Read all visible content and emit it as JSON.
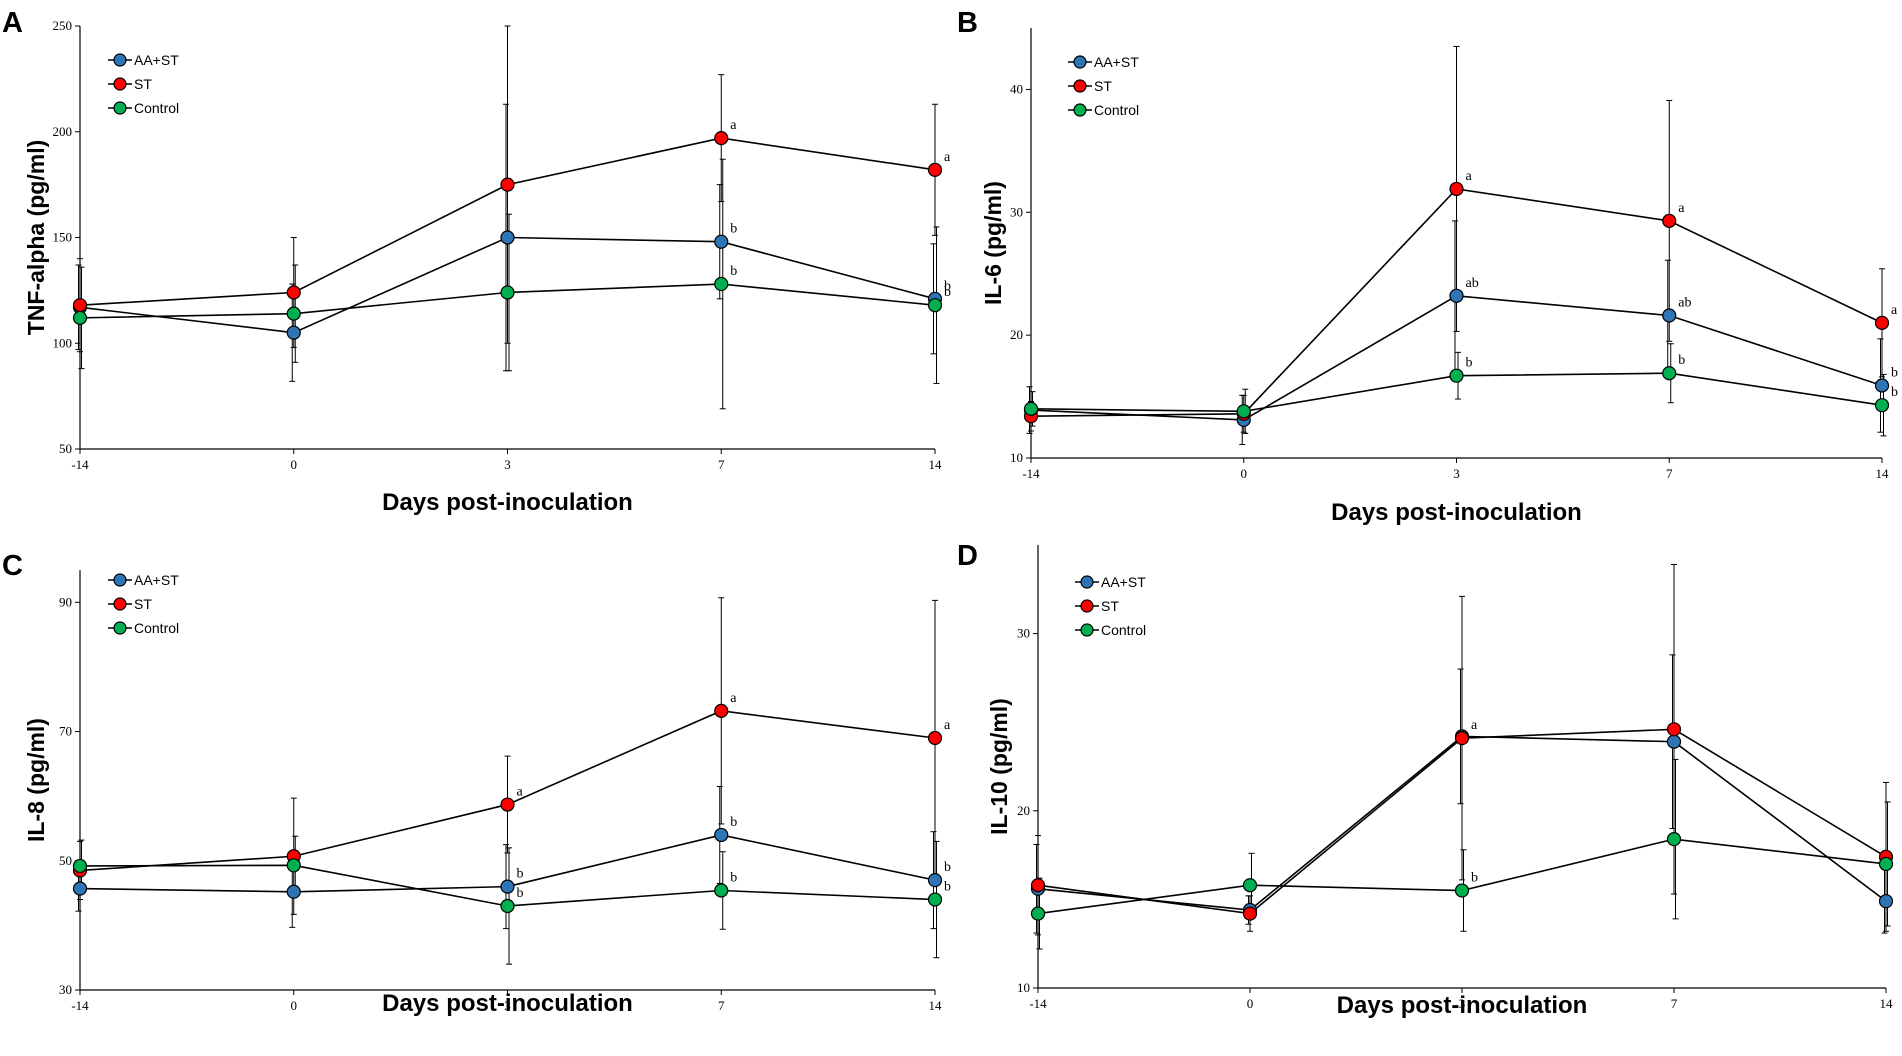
{
  "chart_data": [
    {
      "type": "line",
      "panel": "A",
      "title": "",
      "xlabel": "Days post-inoculation",
      "ylabel": "TNF-alpha (pg/ml)",
      "categories": [
        "-14",
        "0",
        "3",
        "7",
        "14"
      ],
      "ylim": [
        50,
        250
      ],
      "yticks": [
        50,
        100,
        150,
        200,
        250
      ],
      "legend_position": "top-left",
      "series": [
        {
          "name": "AA+ST",
          "color": "#2e75b6",
          "values": [
            117,
            105,
            150,
            148,
            121
          ],
          "errors": [
            20,
            23,
            63,
            27,
            26
          ],
          "sig": [
            "",
            "",
            "",
            "b",
            "b"
          ]
        },
        {
          "name": "ST",
          "color": "#ff0000",
          "values": [
            118,
            124,
            175,
            197,
            182
          ],
          "errors": [
            22,
            26,
            75,
            30,
            31
          ],
          "sig": [
            "",
            "",
            "",
            "a",
            "a"
          ]
        },
        {
          "name": "Control",
          "color": "#00b050",
          "values": [
            112,
            114,
            124,
            128,
            118
          ],
          "errors": [
            24,
            23,
            37,
            59,
            37
          ],
          "sig": [
            "",
            "",
            "",
            "b",
            "b"
          ]
        }
      ]
    },
    {
      "type": "line",
      "panel": "B",
      "title": "",
      "xlabel": "Days post-inoculation",
      "ylabel": "IL-6 (pg/ml)",
      "categories": [
        "-14",
        "0",
        "3",
        "7",
        "14"
      ],
      "ylim": [
        10,
        45
      ],
      "yticks": [
        10,
        20,
        30,
        40
      ],
      "legend_position": "top-left",
      "series": [
        {
          "name": "AA+ST",
          "color": "#2e75b6",
          "values": [
            13.9,
            13.1,
            23.2,
            21.6,
            15.9
          ],
          "errors": [
            1.9,
            2.0,
            6.1,
            4.5,
            3.8
          ],
          "sig": [
            "",
            "",
            "ab",
            "ab",
            "b"
          ]
        },
        {
          "name": "ST",
          "color": "#ff0000",
          "values": [
            13.4,
            13.6,
            31.9,
            29.3,
            21.0
          ],
          "errors": [
            1.2,
            1.5,
            11.6,
            9.8,
            4.4
          ],
          "sig": [
            "",
            "",
            "a",
            "a",
            "a"
          ]
        },
        {
          "name": "Control",
          "color": "#00b050",
          "values": [
            14.0,
            13.8,
            16.7,
            16.9,
            14.3
          ],
          "errors": [
            1.4,
            1.8,
            1.9,
            2.4,
            2.5
          ],
          "sig": [
            "",
            "",
            "b",
            "b",
            "b"
          ]
        }
      ]
    },
    {
      "type": "line",
      "panel": "C",
      "title": "",
      "xlabel": "Days post-inoculation",
      "ylabel": "IL-8 (pg/ml)",
      "categories": [
        "-14",
        "0",
        "3",
        "7",
        "14"
      ],
      "ylim": [
        30,
        95
      ],
      "yticks": [
        30,
        50,
        70,
        90
      ],
      "legend_position": "top-left",
      "series": [
        {
          "name": "AA+ST",
          "color": "#2e75b6",
          "values": [
            45.7,
            45.2,
            46.0,
            54.0,
            47.0
          ],
          "errors": [
            3.5,
            5.5,
            6.5,
            7.5,
            7.5
          ],
          "sig": [
            "",
            "",
            "b",
            "b",
            "b"
          ]
        },
        {
          "name": "ST",
          "color": "#ff0000",
          "values": [
            48.5,
            50.7,
            58.7,
            73.2,
            69.0
          ],
          "errors": [
            4.5,
            9.0,
            7.5,
            17.5,
            21.3
          ],
          "sig": [
            "",
            "",
            "a",
            "a",
            "a"
          ]
        },
        {
          "name": "Control",
          "color": "#00b050",
          "values": [
            49.2,
            49.3,
            43.0,
            45.4,
            44.0
          ],
          "errors": [
            4.0,
            4.5,
            9.0,
            6.0,
            9.0
          ],
          "sig": [
            "",
            "",
            "b",
            "b",
            "b"
          ]
        }
      ]
    },
    {
      "type": "line",
      "panel": "D",
      "title": "",
      "xlabel": "Days post-inoculation",
      "ylabel": "IL-10 (pg/ml)",
      "categories": [
        "-14",
        "0",
        "3",
        "7",
        "14"
      ],
      "ylim": [
        10,
        35
      ],
      "yticks": [
        10,
        20,
        30
      ],
      "legend_position": "top-left",
      "series": [
        {
          "name": "AA+ST",
          "color": "#2e75b6",
          "values": [
            15.6,
            14.4,
            24.2,
            23.9,
            14.9
          ],
          "errors": [
            2.5,
            0.8,
            3.8,
            4.9,
            1.8
          ],
          "sig": [
            "",
            "",
            "",
            "",
            ""
          ]
        },
        {
          "name": "ST",
          "color": "#ff0000",
          "values": [
            15.8,
            14.2,
            24.1,
            24.6,
            17.4
          ],
          "errors": [
            2.8,
            1.0,
            8.0,
            9.3,
            4.2
          ],
          "sig": [
            "",
            "",
            "a",
            "",
            ""
          ]
        },
        {
          "name": "Control",
          "color": "#00b050",
          "values": [
            14.2,
            15.8,
            15.5,
            18.4,
            17.0
          ],
          "errors": [
            2.0,
            1.8,
            2.3,
            4.5,
            3.5
          ],
          "sig": [
            "",
            "",
            "b",
            "",
            ""
          ]
        }
      ]
    }
  ]
}
